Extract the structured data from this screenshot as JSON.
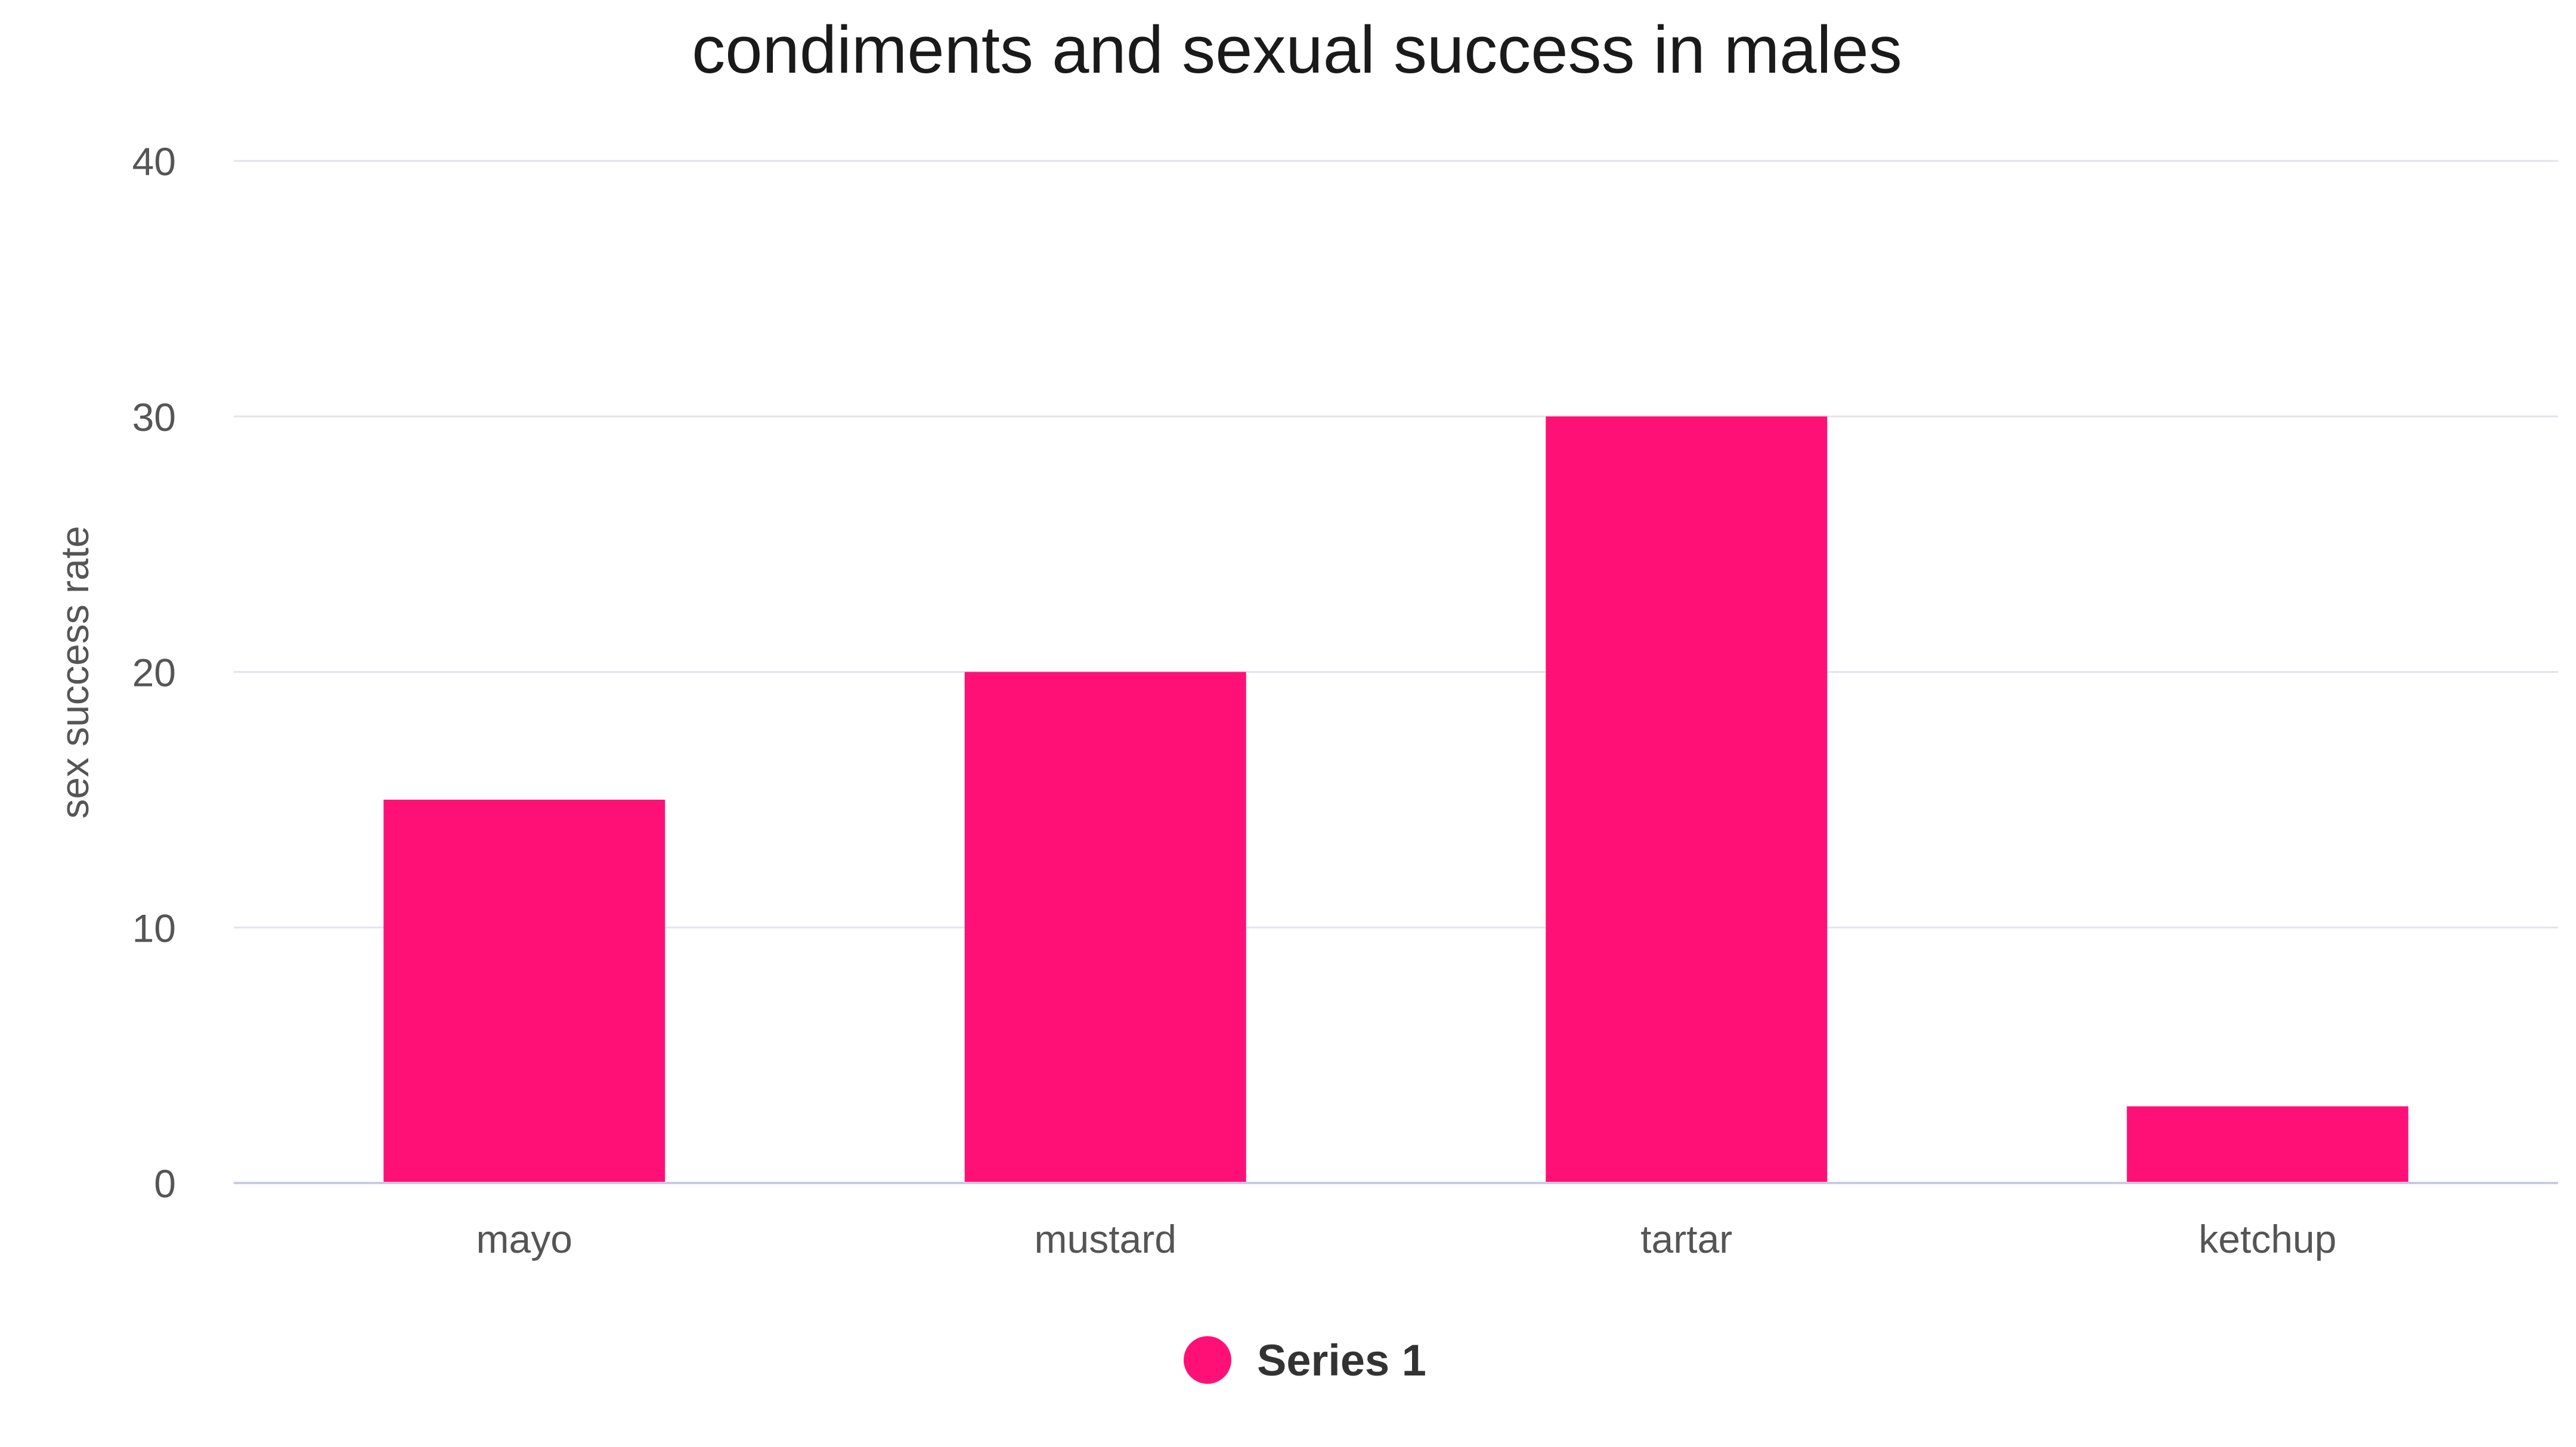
{
  "chart_data": {
    "type": "bar",
    "title": "condiments and sexual success in males",
    "xlabel": "",
    "ylabel": "sex success rate",
    "categories": [
      "mayo",
      "mustard",
      "tartar",
      "ketchup"
    ],
    "series": [
      {
        "name": "Series 1",
        "values": [
          15,
          20,
          30,
          3
        ],
        "color": "#ff1077"
      }
    ],
    "ylim": [
      0,
      40
    ],
    "yticks": [
      0,
      10,
      20,
      30,
      40
    ],
    "grid": true,
    "legend": "bottom-center"
  }
}
